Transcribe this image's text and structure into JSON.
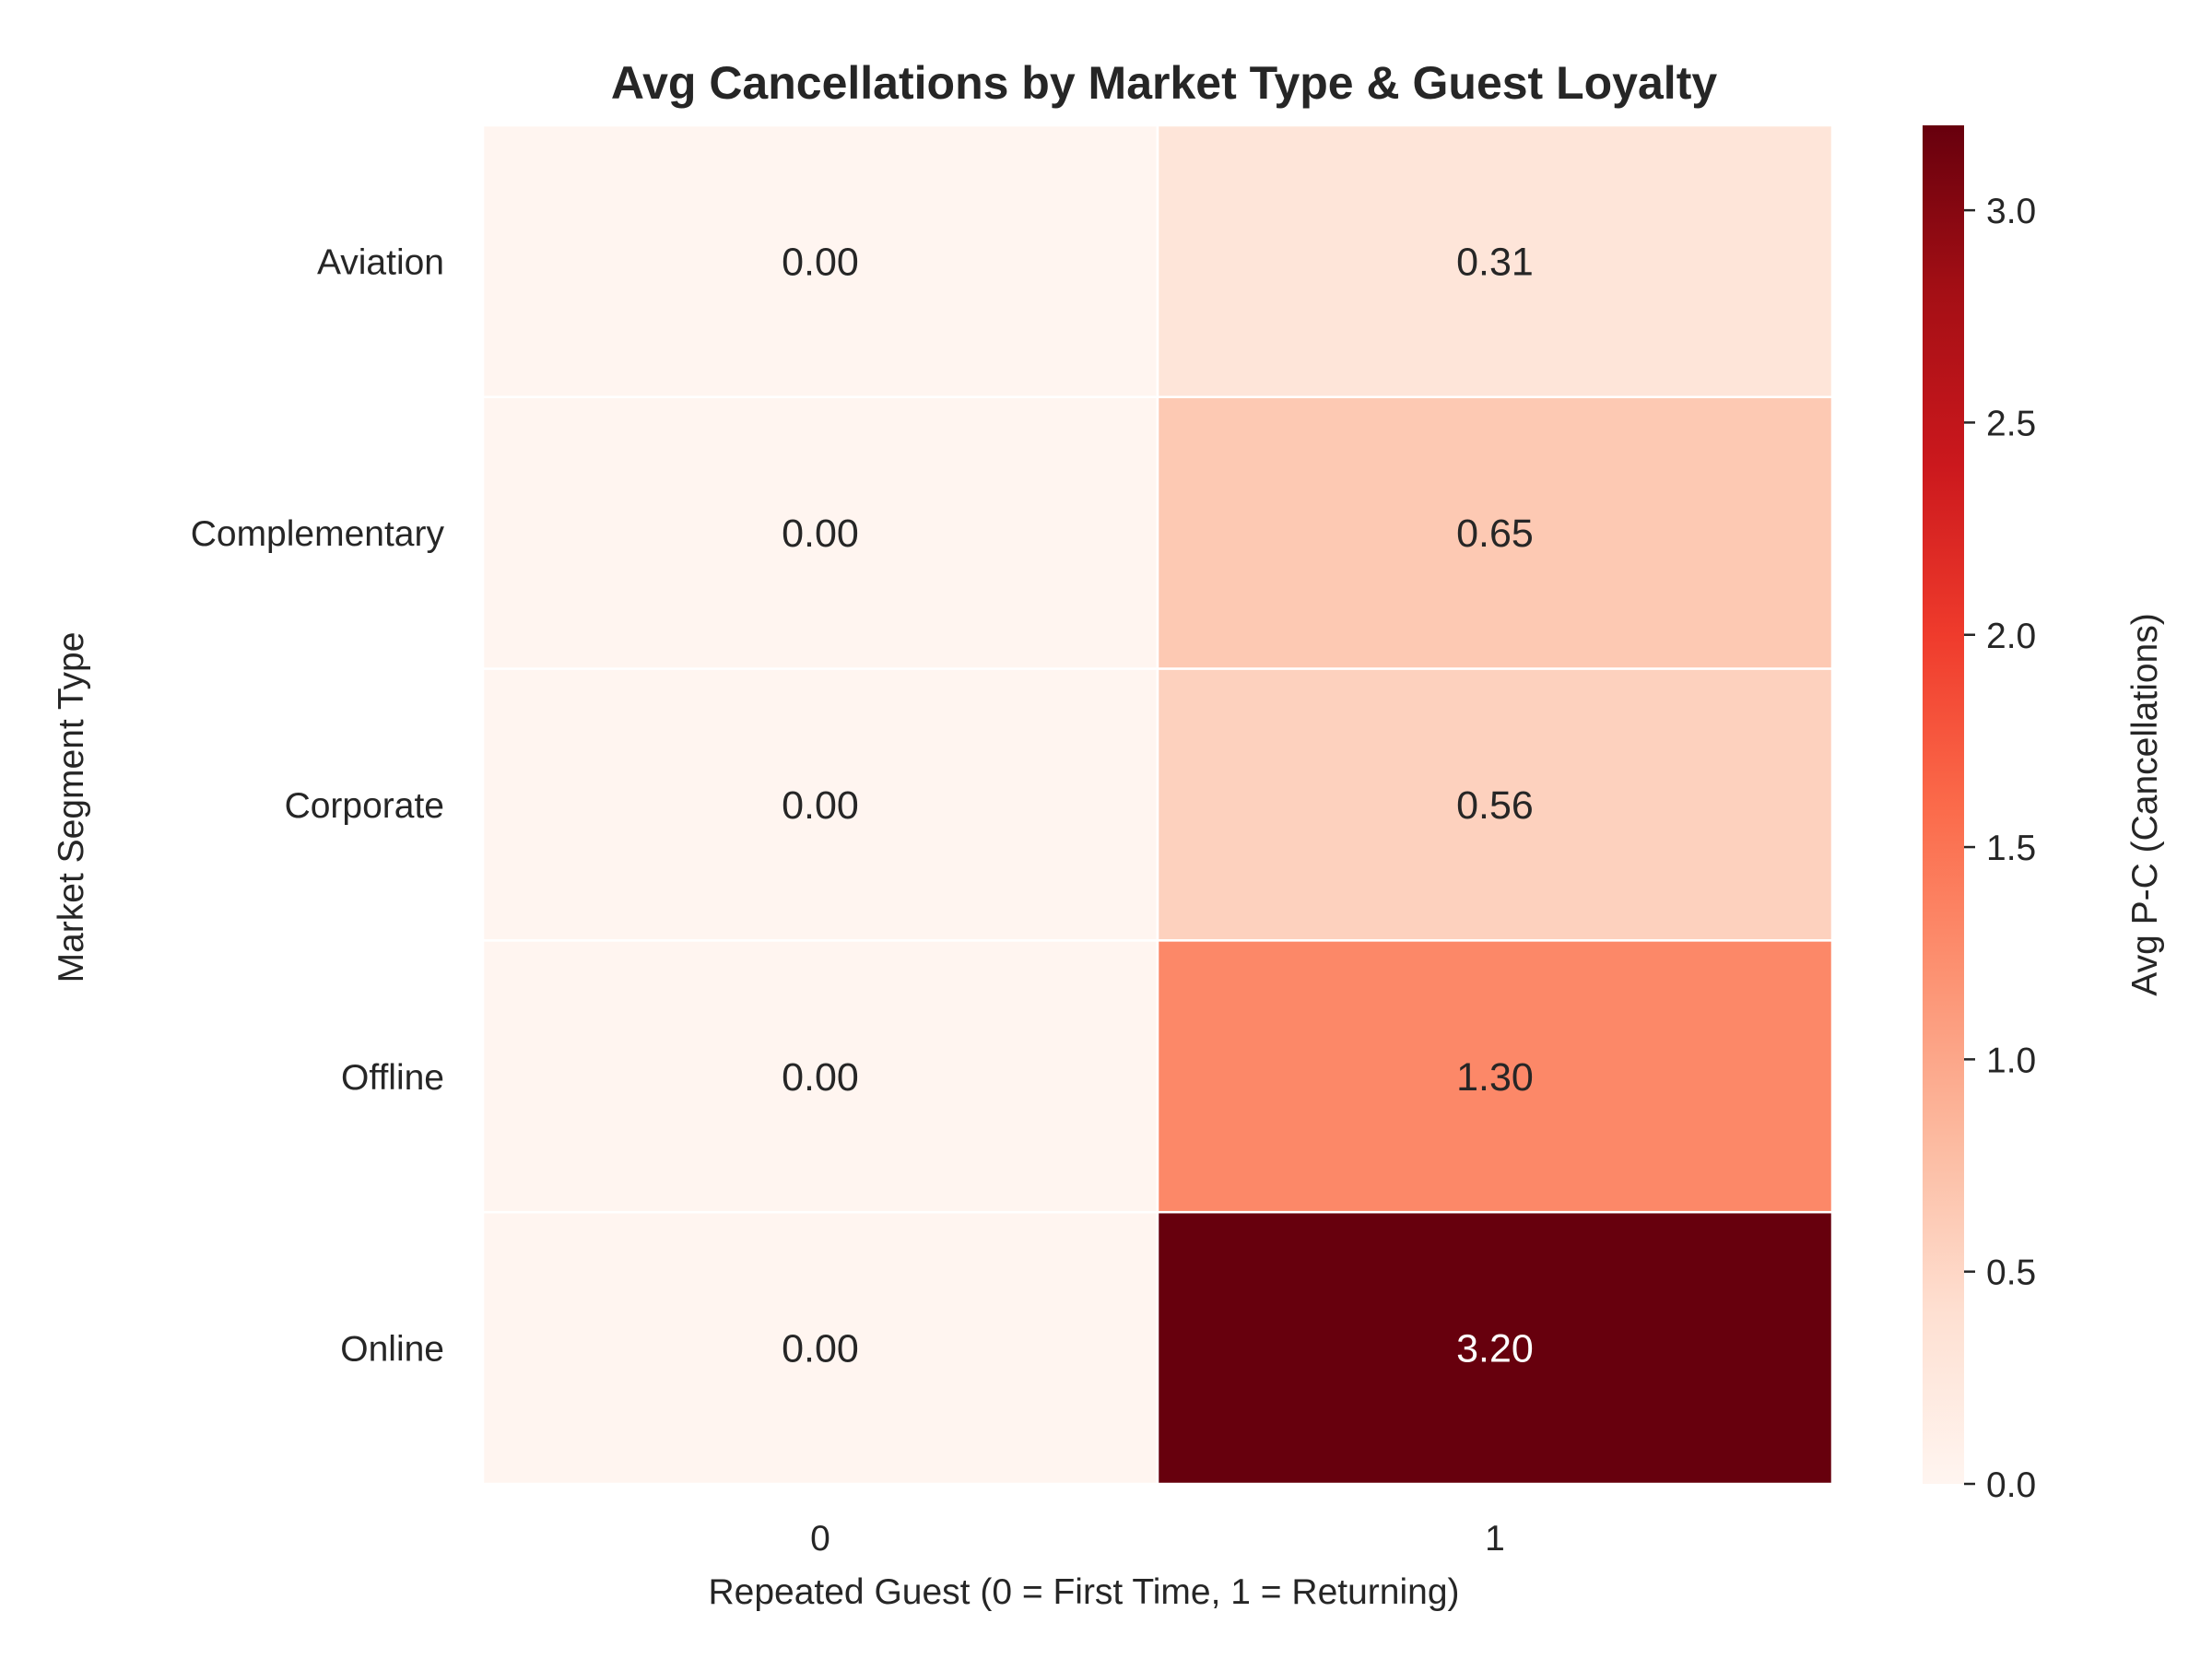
{
  "chart_data": {
    "type": "heatmap",
    "title": "Avg Cancellations by Market Type & Guest Loyalty",
    "xlabel": "Repeated Guest (0 = First Time, 1 = Returning)",
    "ylabel": "Market Segment Type",
    "x_categories": [
      "0",
      "1"
    ],
    "y_categories": [
      "Aviation",
      "Complementary",
      "Corporate",
      "Offline",
      "Online"
    ],
    "values": [
      [
        0.0,
        0.31
      ],
      [
        0.0,
        0.65
      ],
      [
        0.0,
        0.56
      ],
      [
        0.0,
        1.3
      ],
      [
        0.0,
        3.2
      ]
    ],
    "value_labels": [
      [
        "0.00",
        "0.31"
      ],
      [
        "0.00",
        "0.65"
      ],
      [
        "0.00",
        "0.56"
      ],
      [
        "0.00",
        "1.30"
      ],
      [
        "0.00",
        "3.20"
      ]
    ],
    "colormap": "Reds",
    "colorbar": {
      "label": "Avg P-C (Cancellations)",
      "range": [
        0.0,
        3.2
      ],
      "ticks": [
        0.0,
        0.5,
        1.0,
        1.5,
        2.0,
        2.5,
        3.0
      ],
      "tick_labels": [
        "0.0",
        "0.5",
        "1.0",
        "1.5",
        "2.0",
        "2.5",
        "3.0"
      ]
    },
    "cell_border_color": "#ffffff"
  }
}
